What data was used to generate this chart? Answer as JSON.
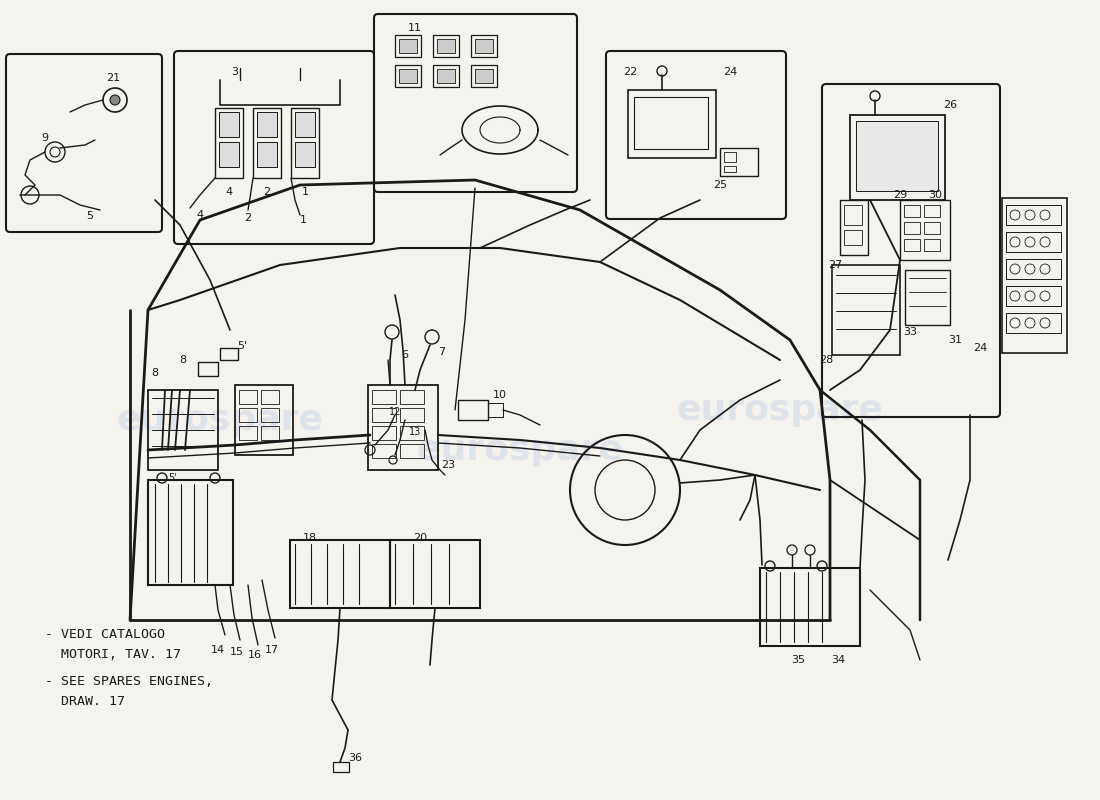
{
  "bg_color": "#f5f3ee",
  "line_color": "#1a1a1a",
  "watermark_color": "#c8d4e8",
  "note_line1": "- VEDI CATALOGO",
  "note_line2": "  MOTORI, TAV. 17",
  "note_line3": "- SEE SPARES ENGINES,",
  "note_line4": "  DRAW. 17"
}
